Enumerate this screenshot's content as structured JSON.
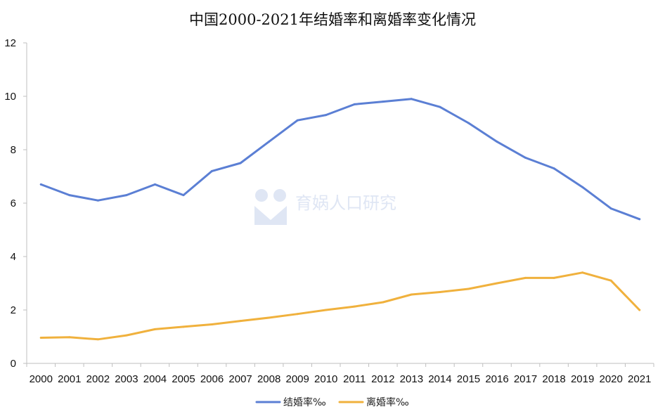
{
  "chart_data": {
    "type": "line",
    "title": "中国2000-2021年结婚率和离婚率变化情况",
    "categories": [
      "2000",
      "2001",
      "2002",
      "2003",
      "2004",
      "2005",
      "2006",
      "2007",
      "2008",
      "2009",
      "2010",
      "2011",
      "2012",
      "2013",
      "2014",
      "2015",
      "2016",
      "2017",
      "2018",
      "2019",
      "2020",
      "2021"
    ],
    "series": [
      {
        "name": "结婚率‰",
        "color": "#5b7fd4",
        "values": [
          6.7,
          6.3,
          6.1,
          6.3,
          6.7,
          6.3,
          7.2,
          7.5,
          8.3,
          9.1,
          9.3,
          9.7,
          9.8,
          9.9,
          9.6,
          9.0,
          8.3,
          7.7,
          7.3,
          6.6,
          5.8,
          5.4
        ]
      },
      {
        "name": "离婚率‰",
        "color": "#f0b13d",
        "values": [
          0.96,
          0.98,
          0.9,
          1.05,
          1.28,
          1.37,
          1.46,
          1.59,
          1.71,
          1.85,
          2.0,
          2.13,
          2.29,
          2.58,
          2.67,
          2.79,
          3.0,
          3.2,
          3.2,
          3.4,
          3.1,
          2.0
        ]
      }
    ],
    "ylim": [
      0,
      12
    ],
    "yticks": [
      "0",
      "2",
      "4",
      "6",
      "8",
      "10",
      "12"
    ],
    "grid": false,
    "legend_position": "bottom"
  },
  "watermark": {
    "text": "育娲人口研究",
    "icon": "people-logo-icon",
    "color": "#dfe6f4"
  }
}
